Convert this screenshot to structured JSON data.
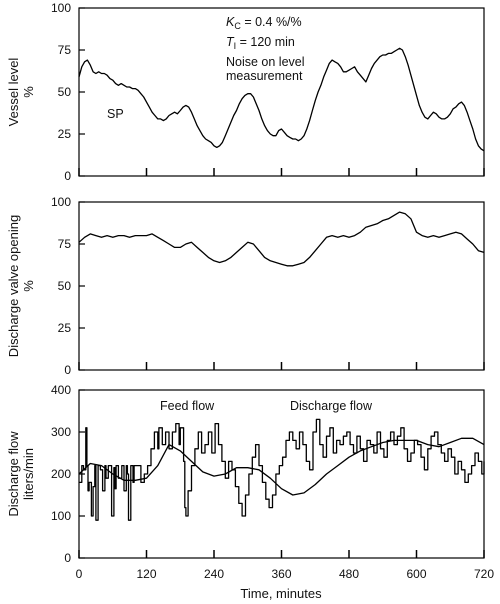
{
  "chart_data": [
    {
      "type": "line",
      "ylabel": [
        "Vessel level",
        "%"
      ],
      "ylim": [
        0,
        100
      ],
      "yticks": [
        "0",
        "25",
        "50",
        "75",
        "100"
      ],
      "xlim": [
        0,
        720
      ],
      "annotations": {
        "kc_sym": "K",
        "kc_sub": "C",
        "kc_val": " = 0.4 %/%",
        "ti_sym": "T",
        "ti_sub": "I",
        "ti_val": " = 120 min",
        "noise_1": "Noise on level",
        "noise_2": "measurement",
        "sp": "SP"
      },
      "series": [
        {
          "x": [
            0,
            5,
            10,
            15,
            20,
            25,
            30,
            35,
            40,
            45,
            50,
            55,
            60,
            65,
            70,
            75,
            80,
            85,
            90,
            95,
            100,
            105,
            110,
            115,
            120,
            125,
            130,
            135,
            140,
            145,
            150,
            155,
            160,
            165,
            170,
            175,
            180,
            185,
            190,
            195,
            200,
            205,
            210,
            215,
            220,
            225,
            230,
            235,
            240,
            245,
            250,
            255,
            260,
            265,
            270,
            275,
            280,
            285,
            290,
            295,
            300,
            305,
            310,
            315,
            320,
            325,
            330,
            335,
            340,
            345,
            350,
            355,
            360,
            365,
            370,
            375,
            380,
            385,
            390,
            395,
            400,
            405,
            410,
            415,
            420,
            425,
            430,
            435,
            440,
            445,
            450,
            455,
            460,
            465,
            470,
            475,
            480,
            485,
            490,
            495,
            500,
            505,
            510,
            515,
            520,
            525,
            530,
            535,
            540,
            545,
            550,
            555,
            560,
            565,
            570,
            575,
            580,
            585,
            590,
            595,
            600,
            605,
            610,
            615,
            620,
            625,
            630,
            635,
            640,
            645,
            650,
            655,
            660,
            665,
            670,
            675,
            680,
            685,
            690,
            695,
            700,
            705,
            710,
            715,
            720
          ],
          "values": [
            59,
            65,
            68,
            69,
            66,
            62,
            61,
            62,
            61,
            61,
            60,
            58,
            57,
            55,
            54,
            55,
            54,
            53,
            53,
            52,
            52,
            51,
            49,
            47,
            44,
            41,
            38,
            36,
            34,
            34,
            33,
            34,
            36,
            37,
            38,
            37,
            39,
            41,
            42,
            41,
            38,
            34,
            30,
            27,
            24,
            22,
            21,
            20,
            18,
            17,
            18,
            20,
            24,
            28,
            32,
            36,
            39,
            43,
            46,
            48,
            49,
            49,
            47,
            43,
            39,
            34,
            30,
            27,
            25,
            24,
            24,
            27,
            28,
            26,
            24,
            23,
            22,
            22,
            21,
            22,
            24,
            28,
            33,
            39,
            45,
            50,
            54,
            59,
            63,
            67,
            69,
            68,
            67,
            65,
            62,
            62,
            63,
            64,
            65,
            62,
            60,
            58,
            56,
            60,
            64,
            67,
            69,
            71,
            72,
            72,
            73,
            73,
            74,
            75,
            76,
            75,
            71,
            66,
            60,
            54,
            48,
            42,
            38,
            35,
            34,
            36,
            38,
            37,
            35,
            34,
            34,
            35,
            37,
            40,
            41,
            43,
            44,
            42,
            38,
            33,
            28,
            22,
            18,
            16,
            15
          ]
        }
      ]
    },
    {
      "type": "line",
      "ylabel": [
        "Discharge valve opening",
        "%"
      ],
      "ylim": [
        0,
        100
      ],
      "yticks": [
        "0",
        "25",
        "50",
        "75",
        "100"
      ],
      "xlim": [
        0,
        720
      ],
      "series": [
        {
          "x": [
            0,
            10,
            20,
            30,
            40,
            50,
            60,
            70,
            80,
            90,
            100,
            110,
            120,
            130,
            140,
            150,
            160,
            170,
            180,
            190,
            200,
            210,
            220,
            230,
            240,
            250,
            260,
            270,
            280,
            290,
            300,
            310,
            320,
            330,
            340,
            350,
            360,
            370,
            380,
            390,
            400,
            410,
            420,
            430,
            440,
            450,
            460,
            470,
            480,
            490,
            500,
            510,
            520,
            530,
            540,
            550,
            560,
            570,
            580,
            590,
            600,
            610,
            620,
            630,
            640,
            650,
            660,
            670,
            680,
            690,
            700,
            710,
            720
          ],
          "values": [
            76,
            79,
            81,
            80,
            79,
            80,
            79,
            80,
            80,
            79,
            80,
            80,
            80,
            81,
            79,
            77,
            75,
            73,
            73,
            75,
            76,
            73,
            70,
            67,
            65,
            64,
            65,
            67,
            70,
            73,
            76,
            75,
            71,
            67,
            65,
            64,
            63,
            62,
            62,
            63,
            64,
            67,
            71,
            75,
            79,
            80,
            79,
            80,
            79,
            80,
            82,
            85,
            86,
            87,
            89,
            90,
            92,
            94,
            93,
            90,
            82,
            80,
            79,
            80,
            79,
            80,
            81,
            82,
            81,
            78,
            75,
            71,
            70
          ]
        }
      ]
    },
    {
      "type": "line",
      "ylabel": [
        "Discharge flow",
        "liters/min"
      ],
      "ylim": [
        0,
        400
      ],
      "yticks": [
        "0",
        "100",
        "200",
        "300",
        "400"
      ],
      "xlim": [
        0,
        720
      ],
      "xticks": [
        "0",
        "120",
        "240",
        "360",
        "480",
        "600",
        "720"
      ],
      "xlabel": "Time, minutes",
      "annotations": {
        "feed": "Feed flow",
        "discharge": "Discharge flow"
      },
      "series": [
        {
          "name": "Feed flow",
          "x": [
            0,
            5,
            8,
            12,
            14,
            16,
            18,
            22,
            25,
            28,
            30,
            34,
            38,
            42,
            46,
            48,
            52,
            58,
            62,
            64,
            66,
            70,
            76,
            80,
            84,
            86,
            88,
            92,
            96,
            98,
            104,
            110,
            116,
            122,
            128,
            134,
            140,
            142,
            148,
            154,
            160,
            166,
            172,
            178,
            180,
            186,
            188,
            190,
            194,
            200,
            206,
            212,
            218,
            224,
            230,
            236,
            242,
            248,
            254,
            260,
            266,
            272,
            278,
            284,
            290,
            296,
            302,
            308,
            314,
            320,
            326,
            332,
            338,
            344,
            350,
            356,
            362,
            368,
            374,
            380,
            386,
            392,
            398,
            404,
            410,
            416,
            422,
            428,
            434,
            440,
            446,
            452,
            458,
            464,
            470,
            476,
            482,
            488,
            494,
            500,
            506,
            512,
            518,
            524,
            530,
            536,
            542,
            548,
            554,
            560,
            566,
            572,
            578,
            584,
            590,
            596,
            602,
            608,
            614,
            620,
            626,
            632,
            638,
            644,
            650,
            656,
            662,
            668,
            674,
            680,
            686,
            692,
            698,
            704,
            710,
            716,
            720
          ],
          "values": [
            180,
            220,
            210,
            310,
            220,
            160,
            180,
            100,
            170,
            220,
            90,
            220,
            210,
            160,
            220,
            190,
            220,
            100,
            215,
            165,
            220,
            190,
            220,
            160,
            220,
            200,
            90,
            220,
            180,
            220,
            220,
            180,
            200,
            220,
            260,
            300,
            260,
            310,
            270,
            300,
            260,
            300,
            320,
            270,
            310,
            230,
            120,
            100,
            160,
            220,
            260,
            300,
            250,
            270,
            300,
            250,
            320,
            270,
            230,
            190,
            230,
            210,
            170,
            130,
            100,
            150,
            200,
            240,
            270,
            220,
            180,
            140,
            120,
            150,
            200,
            220,
            240,
            280,
            300,
            280,
            260,
            300,
            270,
            230,
            210,
            300,
            330,
            270,
            240,
            290,
            310,
            250,
            280,
            270,
            290,
            300,
            270,
            250,
            290,
            260,
            230,
            280,
            270,
            250,
            300,
            260,
            240,
            280,
            300,
            270,
            290,
            310,
            260,
            230,
            250,
            280,
            270,
            240,
            210,
            260,
            290,
            300,
            270,
            250,
            230,
            260,
            240,
            200,
            230,
            210,
            180,
            200,
            220,
            250,
            230,
            200,
            230
          ]
        },
        {
          "name": "Discharge flow",
          "x": [
            0,
            20,
            40,
            60,
            80,
            100,
            120,
            140,
            160,
            180,
            200,
            220,
            240,
            260,
            280,
            300,
            320,
            340,
            360,
            380,
            400,
            420,
            440,
            460,
            480,
            500,
            520,
            540,
            560,
            580,
            600,
            620,
            640,
            660,
            680,
            700,
            720
          ],
          "values": [
            200,
            225,
            220,
            200,
            185,
            185,
            190,
            220,
            270,
            255,
            230,
            205,
            195,
            200,
            215,
            215,
            210,
            190,
            165,
            150,
            155,
            175,
            200,
            220,
            240,
            255,
            265,
            275,
            280,
            280,
            280,
            270,
            265,
            275,
            285,
            285,
            270
          ]
        }
      ]
    }
  ]
}
